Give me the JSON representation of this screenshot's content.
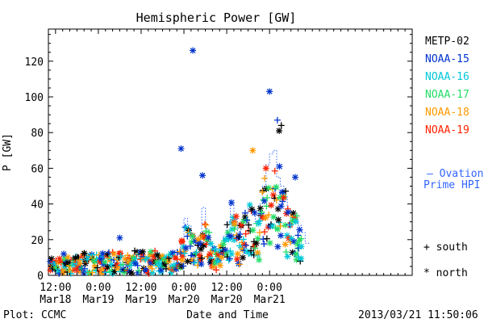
{
  "chart_data": {
    "type": "scatter",
    "title": "Hemispheric Power [GW]",
    "ylabel": "P [GW]",
    "xlabel": "Date and Time",
    "ylim": [
      0,
      138
    ],
    "yticks": [
      0,
      20,
      40,
      60,
      80,
      100,
      120
    ],
    "xlim_hours": [
      -2,
      100
    ],
    "xticks": [
      {
        "hour": 0,
        "time": "12:00",
        "date": "Mar18"
      },
      {
        "hour": 12,
        "time": "0:00",
        "date": "Mar19"
      },
      {
        "hour": 24,
        "time": "12:00",
        "date": "Mar19"
      },
      {
        "hour": 36,
        "time": "0:00",
        "date": "Mar20"
      },
      {
        "hour": 48,
        "time": "12:00",
        "date": "Mar20"
      },
      {
        "hour": 60,
        "time": "0:00",
        "date": "Mar21"
      }
    ],
    "legend_position": "right",
    "series": [
      {
        "name": "METP-02",
        "color": "#000000"
      },
      {
        "name": "NOAA-15",
        "color": "#0033cc"
      },
      {
        "name": "NOAA-16",
        "color": "#00c8d8"
      },
      {
        "name": "NOAA-17",
        "color": "#22dd66"
      },
      {
        "name": "NOAA-18",
        "color": "#ff9900"
      },
      {
        "name": "NOAA-19",
        "color": "#ff2200"
      }
    ],
    "ovation_label_1": "— Ovation",
    "ovation_label_2": "Prime HPI",
    "ovation_color": "#3366ff",
    "marker_south": "+ south",
    "marker_north": "* north",
    "notable_points": [
      {
        "series": "NOAA-15",
        "marker": "north",
        "hour": 38.5,
        "value": 126
      },
      {
        "series": "NOAA-15",
        "marker": "north",
        "hour": 35.2,
        "value": 71
      },
      {
        "series": "NOAA-15",
        "marker": "north",
        "hour": 60.0,
        "value": 103
      },
      {
        "series": "NOAA-15",
        "marker": "south",
        "hour": 62.2,
        "value": 87
      },
      {
        "series": "METP-02",
        "marker": "north",
        "hour": 62.7,
        "value": 81
      },
      {
        "series": "METP-02",
        "marker": "south",
        "hour": 63.3,
        "value": 84
      },
      {
        "series": "NOAA-18",
        "marker": "north",
        "hour": 55.3,
        "value": 70
      },
      {
        "series": "NOAA-15",
        "marker": "north",
        "hour": 18.0,
        "value": 21
      },
      {
        "series": "NOAA-15",
        "marker": "north",
        "hour": 41.2,
        "value": 56
      },
      {
        "series": "NOAA-15",
        "marker": "north",
        "hour": 62.8,
        "value": 61
      },
      {
        "series": "NOAA-19",
        "marker": "north",
        "hour": 59.0,
        "value": 60
      },
      {
        "series": "NOAA-15",
        "marker": "north",
        "hour": 67.2,
        "value": 55
      },
      {
        "series": "NOAA-15",
        "marker": "north",
        "hour": 2.3,
        "value": 12
      }
    ],
    "ovation_hpi": [
      [
        -2,
        5
      ],
      [
        3,
        6
      ],
      [
        7,
        8
      ],
      [
        10,
        8
      ],
      [
        14,
        8
      ],
      [
        18,
        8
      ],
      [
        22,
        9
      ],
      [
        26,
        9
      ],
      [
        29,
        6
      ],
      [
        32,
        8
      ],
      [
        34,
        14
      ],
      [
        35,
        20
      ],
      [
        36,
        32
      ],
      [
        37,
        28
      ],
      [
        38,
        23
      ],
      [
        39,
        18
      ],
      [
        40,
        22
      ],
      [
        41,
        38
      ],
      [
        42,
        26
      ],
      [
        43,
        18
      ],
      [
        44,
        14
      ],
      [
        45,
        12
      ],
      [
        46,
        16
      ],
      [
        47,
        22
      ],
      [
        48,
        30
      ],
      [
        49,
        42
      ],
      [
        50,
        32
      ],
      [
        51,
        24
      ],
      [
        52,
        28
      ],
      [
        53,
        35
      ],
      [
        54,
        38
      ],
      [
        55,
        36
      ],
      [
        56,
        30
      ],
      [
        57,
        40
      ],
      [
        58,
        50
      ],
      [
        59,
        62
      ],
      [
        60,
        68
      ],
      [
        61,
        70
      ],
      [
        62,
        55
      ],
      [
        63,
        50
      ],
      [
        64,
        44
      ],
      [
        65,
        36
      ],
      [
        66,
        34
      ],
      [
        67,
        32
      ],
      [
        68,
        28
      ],
      [
        69,
        24
      ],
      [
        70,
        18
      ]
    ]
  },
  "footer": {
    "plot_credit": "Plot: CCMC",
    "timestamp": "2013/03/21 11:50:06"
  }
}
